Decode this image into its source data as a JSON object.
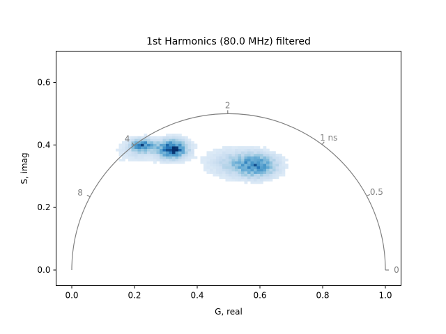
{
  "chart_data": {
    "type": "heatmap",
    "title": "1st Harmonics (80.0 MHz) filtered",
    "xlabel": "G, real",
    "ylabel": "S, imag",
    "xlim": [
      -0.05,
      1.05
    ],
    "ylim": [
      -0.05,
      0.7
    ],
    "xticks": [
      "0.0",
      "0.2",
      "0.4",
      "0.6",
      "0.8",
      "1.0"
    ],
    "yticks": [
      "0.0",
      "0.2",
      "0.4",
      "0.6"
    ],
    "grid": false,
    "colormap": "Blues",
    "colors": {
      "universal_circle": "#808080",
      "axes": "#000000"
    },
    "universal_circle": {
      "center": [
        0.5,
        0.0
      ],
      "radius": 0.5,
      "lifetime_labels": [
        {
          "label": "0",
          "lifetime_ns": 0
        },
        {
          "label": "0.5",
          "lifetime_ns": 0.5
        },
        {
          "label": "1 ns",
          "lifetime_ns": 1
        },
        {
          "label": "2",
          "lifetime_ns": 2
        },
        {
          "label": "4",
          "lifetime_ns": 4
        },
        {
          "label": "8",
          "lifetime_ns": 8
        }
      ]
    },
    "clusters": [
      {
        "g": 0.22,
        "s": 0.395,
        "sigma_g": 0.025,
        "sigma_s": 0.014,
        "peak": 0.75
      },
      {
        "g": 0.315,
        "s": 0.383,
        "sigma_g": 0.032,
        "sigma_s": 0.02,
        "peak": 1.0
      },
      {
        "g": 0.585,
        "s": 0.33,
        "sigma_g": 0.045,
        "sigma_s": 0.025,
        "peak": 0.65
      },
      {
        "g": 0.51,
        "s": 0.34,
        "sigma_g": 0.06,
        "sigma_s": 0.03,
        "peak": 0.25
      },
      {
        "g": 0.2,
        "s": 0.37,
        "sigma_g": 0.05,
        "sigma_s": 0.025,
        "peak": 0.12
      }
    ]
  }
}
